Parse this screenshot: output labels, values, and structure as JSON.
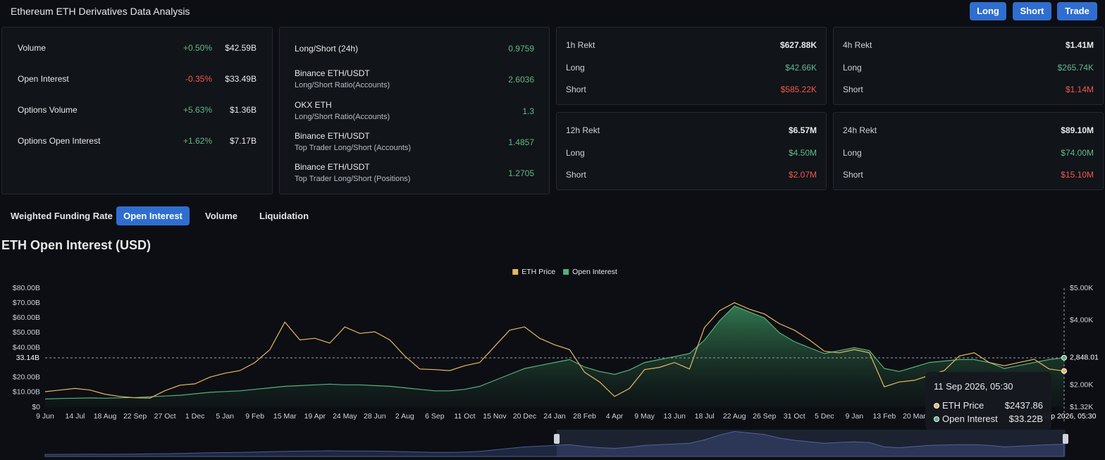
{
  "header": {
    "title": "Ethereum ETH Derivatives Data Analysis",
    "buttons": [
      "Long",
      "Short",
      "Trade"
    ]
  },
  "market": [
    {
      "label": "Volume",
      "change": "+0.50%",
      "value": "$42.59B"
    },
    {
      "label": "Open Interest",
      "change": "-0.35%",
      "value": "$33.49B"
    },
    {
      "label": "Options Volume",
      "change": "+5.63%",
      "value": "$1.36B"
    },
    {
      "label": "Options Open Interest",
      "change": "+1.62%",
      "value": "$7.17B"
    }
  ],
  "long_short": [
    {
      "label": "Long/Short (24h)",
      "value": 0.9759
    },
    {
      "label": "Binance ETH/USDT",
      "sub": "Long/Short Ratio(Accounts)",
      "value": 2.6036
    },
    {
      "label": "OKX ETH",
      "sub": "Long/Short Ratio(Accounts)",
      "value": 1.3
    },
    {
      "label": "Binance ETH/USDT",
      "sub": "Top Trader Long/Short (Accounts)",
      "value": 1.4857
    },
    {
      "label": "Binance ETH/USDT",
      "sub": "Top Trader Long/Short (Positions)",
      "value": 1.2705
    }
  ],
  "rekt": [
    [
      {
        "label": "1h Rekt",
        "value": "$627.88K"
      },
      {
        "label": "Long",
        "value": "$42.66K"
      },
      {
        "label": "Short",
        "value": "$585.22K"
      }
    ],
    [
      {
        "label": "4h Rekt",
        "value": "$1.41M"
      },
      {
        "label": "Long",
        "value": "$265.74K"
      },
      {
        "label": "Short",
        "value": "$1.14M"
      }
    ],
    [
      {
        "label": "12h Rekt",
        "value": "$6.57M"
      },
      {
        "label": "Long",
        "value": "$4.50M"
      },
      {
        "label": "Short",
        "value": "$2.07M"
      }
    ],
    [
      {
        "label": "24h Rekt",
        "value": "$89.10M"
      },
      {
        "label": "Long",
        "value": "$74.00M"
      },
      {
        "label": "Short",
        "value": "$15.10M"
      }
    ]
  ],
  "tabs": [
    "Weighted Funding Rate",
    "Open Interest",
    "Volume",
    "Liquidation"
  ],
  "active_tab": 1,
  "chart_data": {
    "type": "line",
    "title": "ETH Open Interest (USD)",
    "legend": "top",
    "categories": [
      "9 Jun",
      null,
      "14 Jul",
      null,
      "18 Aug",
      null,
      "22 Sep",
      null,
      "27 Oct",
      null,
      "1 Dec",
      null,
      "5 Jan",
      null,
      "9 Feb",
      null,
      "15 Mar",
      null,
      "19 Apr",
      null,
      "24 May",
      null,
      "28 Jun",
      null,
      "2 Aug",
      null,
      "6 Sep",
      null,
      "11 Oct",
      null,
      "15 Nov",
      null,
      "20 Dec",
      null,
      "24 Jan",
      null,
      "28 Feb",
      null,
      "4 Apr",
      null,
      "9 May",
      null,
      "13 Jun",
      null,
      "18 Jul",
      null,
      "22 Aug",
      null,
      "26 Sep",
      null,
      "31 Oct",
      null,
      "5 Dec",
      null,
      "9 Jan",
      null,
      "13 Feb",
      null,
      "20 Mar",
      null,
      null,
      null,
      null,
      null,
      null,
      null,
      null,
      null,
      null
    ],
    "series": [
      {
        "name": "ETH Price",
        "color": "#e8b860",
        "axis": "y2",
        "values": [
          1800,
          1850,
          1900,
          1850,
          1720,
          1650,
          1610,
          1600,
          1830,
          2000,
          2040,
          2250,
          2370,
          2450,
          2700,
          3100,
          3950,
          3400,
          3450,
          3300,
          3800,
          3600,
          3650,
          3400,
          2900,
          2500,
          2480,
          2450,
          2600,
          2700,
          3200,
          3700,
          3800,
          3450,
          3250,
          3100,
          2400,
          2100,
          1650,
          1900,
          2480,
          2550,
          2700,
          2500,
          3780,
          4300,
          4550,
          4350,
          4200,
          3900,
          3700,
          3400,
          3050,
          3000,
          3100,
          3000,
          1950,
          2100,
          2150,
          2300,
          2450,
          2900,
          3000,
          2700,
          2600,
          2700,
          2800,
          2500,
          2437.86
        ]
      },
      {
        "name": "Open Interest",
        "color": "#56b07e",
        "values": [
          5.5,
          5.8,
          6,
          6.2,
          6,
          6.3,
          6.5,
          7,
          7.5,
          8,
          9,
          10,
          10.5,
          11,
          12,
          13,
          14,
          14.5,
          15,
          15.5,
          15,
          15,
          14.5,
          14,
          13,
          12,
          11,
          11,
          12,
          14,
          18,
          22,
          26,
          28,
          30,
          32,
          27,
          24,
          22,
          25,
          30,
          32,
          34,
          36,
          45,
          58,
          68,
          64,
          60,
          50,
          44,
          40,
          36,
          38,
          40,
          38,
          26,
          24,
          27,
          30,
          31,
          32,
          32,
          30,
          26,
          28,
          30,
          32,
          33.22
        ]
      }
    ],
    "ylim": [
      0,
      80
    ],
    "yticks": [
      {
        "value": 0,
        "label": "$0"
      },
      {
        "value": 10,
        "label": "$10.00B"
      },
      {
        "value": 20,
        "label": "$20.00B"
      },
      {
        "value": 40,
        "label": "$40.00B"
      },
      {
        "value": 50,
        "label": "$50.00B"
      },
      {
        "value": 60,
        "label": "$60.00B"
      },
      {
        "value": 70,
        "label": "$70.00B"
      },
      {
        "value": 80,
        "label": "$80.00B"
      }
    ],
    "y2lim": [
      1320,
      5000
    ],
    "y2ticks": [
      {
        "value": 1320,
        "label": "$1.32K"
      },
      {
        "value": 2000,
        "label": "$2.00K"
      },
      {
        "value": 4000,
        "label": "$4.00K"
      },
      {
        "value": 5000,
        "label": "$5.00K"
      }
    ],
    "crosshair": {
      "x_label": "11 Sep 2026, 05:30",
      "y": {
        "value": 33.14,
        "label": "33.14B"
      },
      "y2": {
        "value": 2848.01,
        "label": "2,848.01"
      }
    },
    "tooltip": {
      "title": "11 Sep 2026, 05:30",
      "items": [
        {
          "name": "ETH Price",
          "value": "$2437.86"
        },
        {
          "name": "Open Interest",
          "value": "$33.22B"
        }
      ]
    }
  }
}
